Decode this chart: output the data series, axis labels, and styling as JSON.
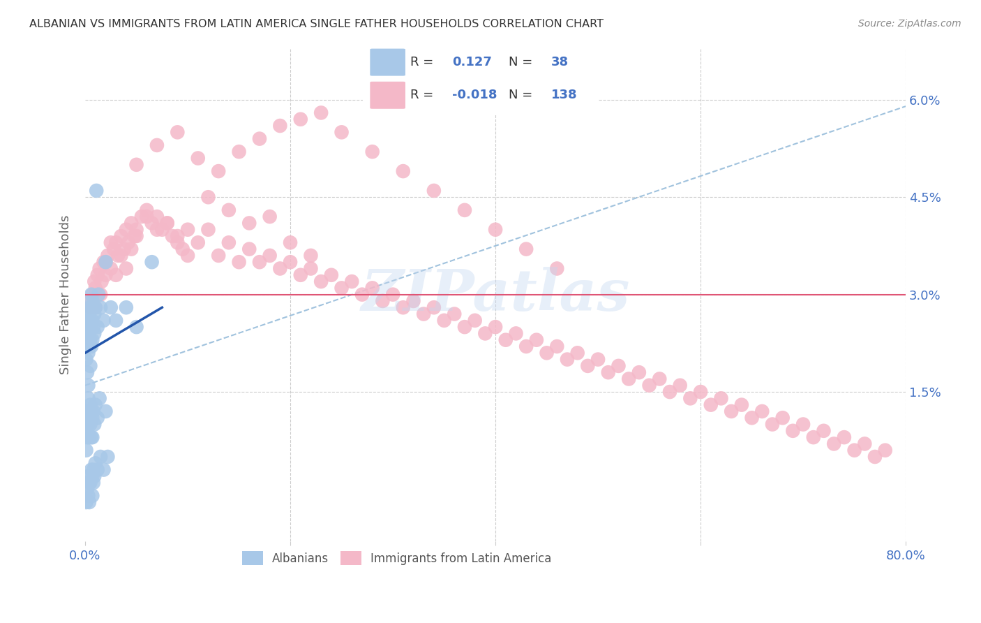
{
  "title": "ALBANIAN VS IMMIGRANTS FROM LATIN AMERICA SINGLE FATHER HOUSEHOLDS CORRELATION CHART",
  "source": "Source: ZipAtlas.com",
  "ylabel": "Single Father Households",
  "xlim": [
    0.0,
    0.8
  ],
  "ylim": [
    -0.008,
    0.068
  ],
  "blue_color": "#a8c8e8",
  "blue_line_color": "#2255aa",
  "pink_color": "#f4b8c8",
  "pink_line_color": "#e05575",
  "dash_line_color": "#90b8d8",
  "legend_text_color": "#4472c4",
  "grid_color": "#cccccc",
  "title_color": "#333333",
  "axis_tick_color": "#4472c4",
  "watermark": "ZIPatlas",
  "background_color": "#ffffff",
  "alb_x": [
    0.001,
    0.001,
    0.002,
    0.002,
    0.002,
    0.003,
    0.003,
    0.003,
    0.003,
    0.004,
    0.004,
    0.004,
    0.005,
    0.005,
    0.005,
    0.006,
    0.006,
    0.006,
    0.006,
    0.007,
    0.007,
    0.007,
    0.008,
    0.008,
    0.009,
    0.009,
    0.01,
    0.011,
    0.012,
    0.013,
    0.015,
    0.018,
    0.02,
    0.025,
    0.03,
    0.04,
    0.05,
    0.065
  ],
  "alb_y": [
    0.024,
    0.02,
    0.026,
    0.022,
    0.018,
    0.027,
    0.024,
    0.021,
    0.016,
    0.028,
    0.025,
    0.022,
    0.026,
    0.023,
    0.019,
    0.03,
    0.028,
    0.025,
    0.022,
    0.029,
    0.026,
    0.023,
    0.028,
    0.025,
    0.027,
    0.024,
    0.028,
    0.046,
    0.025,
    0.03,
    0.028,
    0.026,
    0.035,
    0.028,
    0.026,
    0.028,
    0.025,
    0.035
  ],
  "alb_low_x": [
    0.001,
    0.001,
    0.002,
    0.002,
    0.003,
    0.003,
    0.004,
    0.004,
    0.005,
    0.005,
    0.006,
    0.006,
    0.007,
    0.007,
    0.008,
    0.009,
    0.01,
    0.012,
    0.014,
    0.02
  ],
  "alb_low_y": [
    0.01,
    0.006,
    0.012,
    0.008,
    0.014,
    0.01,
    0.012,
    0.008,
    0.013,
    0.01,
    0.012,
    0.008,
    0.011,
    0.008,
    0.012,
    0.01,
    0.013,
    0.011,
    0.014,
    0.012
  ],
  "alb_neg_x": [
    0.001,
    0.002,
    0.003,
    0.003,
    0.004,
    0.004,
    0.005,
    0.006,
    0.007,
    0.007,
    0.008,
    0.008,
    0.009,
    0.01,
    0.012,
    0.015,
    0.018,
    0.022
  ],
  "alb_neg_y": [
    -0.002,
    0.0,
    -0.001,
    0.002,
    0.001,
    -0.002,
    0.001,
    0.003,
    0.002,
    -0.001,
    0.003,
    0.001,
    0.002,
    0.004,
    0.003,
    0.005,
    0.003,
    0.005
  ],
  "lat_x": [
    0.003,
    0.005,
    0.007,
    0.009,
    0.01,
    0.012,
    0.014,
    0.016,
    0.018,
    0.02,
    0.022,
    0.025,
    0.028,
    0.03,
    0.032,
    0.035,
    0.038,
    0.04,
    0.042,
    0.045,
    0.048,
    0.05,
    0.055,
    0.06,
    0.065,
    0.07,
    0.075,
    0.08,
    0.085,
    0.09,
    0.095,
    0.1,
    0.11,
    0.12,
    0.13,
    0.14,
    0.15,
    0.16,
    0.17,
    0.18,
    0.19,
    0.2,
    0.21,
    0.22,
    0.23,
    0.24,
    0.25,
    0.26,
    0.27,
    0.28,
    0.29,
    0.3,
    0.31,
    0.32,
    0.33,
    0.34,
    0.35,
    0.36,
    0.37,
    0.38,
    0.39,
    0.4,
    0.41,
    0.42,
    0.43,
    0.44,
    0.45,
    0.46,
    0.47,
    0.48,
    0.49,
    0.5,
    0.51,
    0.52,
    0.53,
    0.54,
    0.55,
    0.56,
    0.57,
    0.58,
    0.59,
    0.6,
    0.61,
    0.62,
    0.63,
    0.64,
    0.65,
    0.66,
    0.67,
    0.68,
    0.69,
    0.7,
    0.71,
    0.72,
    0.73,
    0.74,
    0.75,
    0.76,
    0.77,
    0.78,
    0.01,
    0.015,
    0.02,
    0.025,
    0.03,
    0.035,
    0.04,
    0.045,
    0.05,
    0.06,
    0.07,
    0.08,
    0.09,
    0.1,
    0.12,
    0.14,
    0.16,
    0.18,
    0.2,
    0.22,
    0.05,
    0.07,
    0.09,
    0.11,
    0.13,
    0.15,
    0.17,
    0.19,
    0.21,
    0.23,
    0.25,
    0.28,
    0.31,
    0.34,
    0.37,
    0.4,
    0.43,
    0.46
  ],
  "lat_y": [
    0.029,
    0.028,
    0.03,
    0.032,
    0.031,
    0.033,
    0.034,
    0.032,
    0.035,
    0.033,
    0.036,
    0.034,
    0.037,
    0.038,
    0.036,
    0.039,
    0.037,
    0.04,
    0.038,
    0.041,
    0.039,
    0.04,
    0.042,
    0.043,
    0.041,
    0.042,
    0.04,
    0.041,
    0.039,
    0.038,
    0.037,
    0.036,
    0.038,
    0.04,
    0.036,
    0.038,
    0.035,
    0.037,
    0.035,
    0.036,
    0.034,
    0.035,
    0.033,
    0.034,
    0.032,
    0.033,
    0.031,
    0.032,
    0.03,
    0.031,
    0.029,
    0.03,
    0.028,
    0.029,
    0.027,
    0.028,
    0.026,
    0.027,
    0.025,
    0.026,
    0.024,
    0.025,
    0.023,
    0.024,
    0.022,
    0.023,
    0.021,
    0.022,
    0.02,
    0.021,
    0.019,
    0.02,
    0.018,
    0.019,
    0.017,
    0.018,
    0.016,
    0.017,
    0.015,
    0.016,
    0.014,
    0.015,
    0.013,
    0.014,
    0.012,
    0.013,
    0.011,
    0.012,
    0.01,
    0.011,
    0.009,
    0.01,
    0.008,
    0.009,
    0.007,
    0.008,
    0.006,
    0.007,
    0.005,
    0.006,
    0.028,
    0.03,
    0.035,
    0.038,
    0.033,
    0.036,
    0.034,
    0.037,
    0.039,
    0.042,
    0.04,
    0.041,
    0.039,
    0.04,
    0.045,
    0.043,
    0.041,
    0.042,
    0.038,
    0.036,
    0.05,
    0.053,
    0.055,
    0.051,
    0.049,
    0.052,
    0.054,
    0.056,
    0.057,
    0.058,
    0.055,
    0.052,
    0.049,
    0.046,
    0.043,
    0.04,
    0.037,
    0.034
  ],
  "alb_trendline_x": [
    0.0,
    0.075
  ],
  "alb_trendline_y": [
    0.021,
    0.028
  ],
  "lat_trendline_y": 0.03,
  "dash_trendline_x": [
    0.0,
    0.8
  ],
  "dash_trendline_y": [
    0.016,
    0.059
  ]
}
